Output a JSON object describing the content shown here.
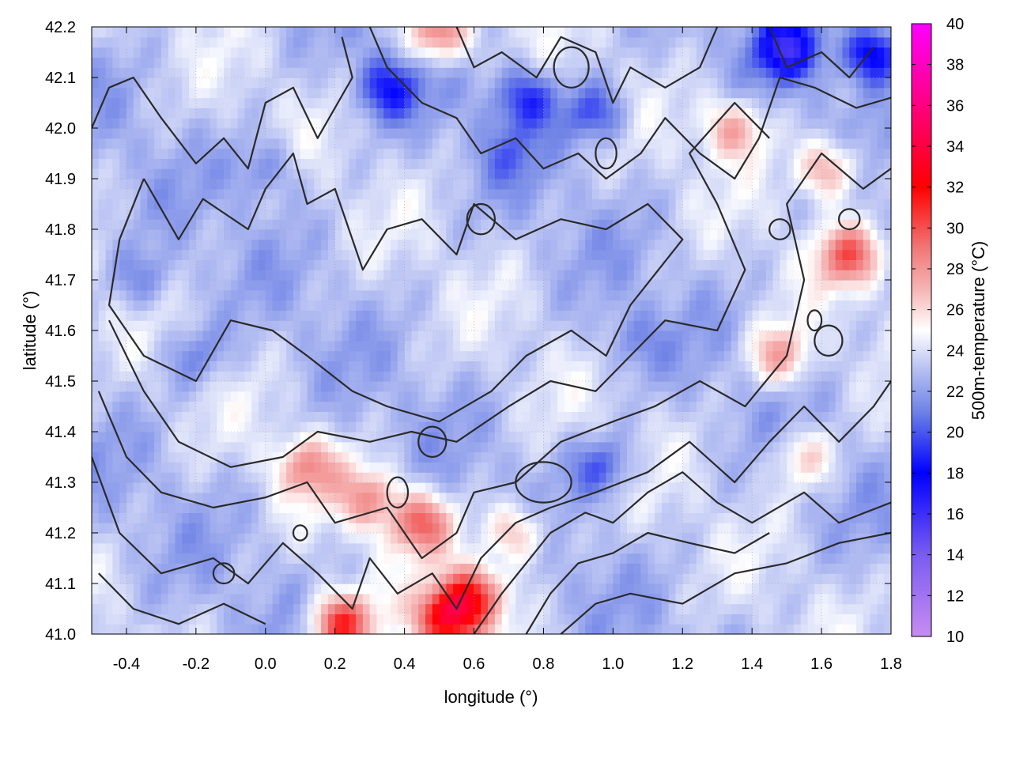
{
  "chart_data": {
    "type": "heatmap",
    "title": "",
    "xlabel": "longitude (°)",
    "ylabel": "latitude (°)",
    "colorbar_label": "500m-temperature (°C)",
    "xlim": [
      -0.5,
      1.8
    ],
    "ylim": [
      41.0,
      42.2
    ],
    "x_ticks": [
      -0.4,
      -0.2,
      0.0,
      0.2,
      0.4,
      0.6,
      0.8,
      1.0,
      1.2,
      1.4,
      1.6,
      1.8
    ],
    "x_tick_labels": [
      "-0.4",
      "-0.2",
      "0.0",
      "0.2",
      "0.4",
      "0.6",
      "0.8",
      "1.0",
      "1.2",
      "1.4",
      "1.6",
      "1.8"
    ],
    "y_ticks": [
      41.0,
      41.1,
      41.2,
      41.3,
      41.4,
      41.5,
      41.6,
      41.7,
      41.8,
      41.9,
      42.0,
      42.1,
      42.2
    ],
    "y_tick_labels": [
      "41.0",
      "41.1",
      "41.2",
      "41.3",
      "41.4",
      "41.5",
      "41.6",
      "41.7",
      "41.8",
      "41.9",
      "42.0",
      "42.1",
      "42.2"
    ],
    "colorbar_range": [
      10,
      40
    ],
    "colorbar_ticks": [
      10,
      12,
      14,
      16,
      18,
      20,
      22,
      24,
      26,
      28,
      30,
      32,
      34,
      36,
      38,
      40
    ],
    "colorbar_tick_labels": [
      "10",
      "12",
      "14",
      "16",
      "18",
      "20",
      "22",
      "24",
      "26",
      "28",
      "30",
      "32",
      "34",
      "36",
      "38",
      "40"
    ],
    "colormap": [
      {
        "value": 10,
        "color": "#c88cf0"
      },
      {
        "value": 14,
        "color": "#7a5cf0"
      },
      {
        "value": 18,
        "color": "#0000ff"
      },
      {
        "value": 21,
        "color": "#6e82e6"
      },
      {
        "value": 23,
        "color": "#b4bef2"
      },
      {
        "value": 25,
        "color": "#ffffff"
      },
      {
        "value": 27,
        "color": "#f6b4b4"
      },
      {
        "value": 29,
        "color": "#f07878"
      },
      {
        "value": 32,
        "color": "#ff0000"
      },
      {
        "value": 36,
        "color": "#ff0080"
      },
      {
        "value": 40,
        "color": "#ff00ff"
      }
    ],
    "grid": true,
    "hotspots": [
      {
        "lon": 0.22,
        "lat": 41.02,
        "t": 31
      },
      {
        "lon": 0.52,
        "lat": 41.03,
        "t": 32
      },
      {
        "lon": 0.6,
        "lat": 41.08,
        "t": 30
      },
      {
        "lon": 0.45,
        "lat": 41.22,
        "t": 29
      },
      {
        "lon": 0.3,
        "lat": 41.27,
        "t": 27.5
      },
      {
        "lon": 0.12,
        "lat": 41.33,
        "t": 27.5
      },
      {
        "lon": 0.72,
        "lat": 41.2,
        "t": 27.5
      },
      {
        "lon": 1.68,
        "lat": 41.75,
        "t": 29
      },
      {
        "lon": 1.62,
        "lat": 41.92,
        "t": 28
      },
      {
        "lon": 1.35,
        "lat": 42.0,
        "t": 27.5
      },
      {
        "lon": 1.48,
        "lat": 41.55,
        "t": 27.5
      },
      {
        "lon": 0.5,
        "lat": 42.19,
        "t": 29
      },
      {
        "lon": 1.55,
        "lat": 41.35,
        "t": 26.5
      }
    ],
    "coldspots": [
      {
        "lon": 1.5,
        "lat": 42.16,
        "t": 17
      },
      {
        "lon": 1.75,
        "lat": 42.15,
        "t": 17
      },
      {
        "lon": 0.35,
        "lat": 42.08,
        "t": 19
      },
      {
        "lon": 0.75,
        "lat": 42.06,
        "t": 19
      },
      {
        "lon": 0.95,
        "lat": 42.03,
        "t": 19.5
      },
      {
        "lon": -0.35,
        "lat": 41.7,
        "t": 21
      },
      {
        "lon": -0.2,
        "lat": 41.55,
        "t": 21
      },
      {
        "lon": 0.0,
        "lat": 41.92,
        "t": 21
      },
      {
        "lon": 0.97,
        "lat": 41.33,
        "t": 20
      },
      {
        "lon": 1.05,
        "lat": 41.58,
        "t": 21.5
      },
      {
        "lon": 0.7,
        "lat": 41.95,
        "t": 21.5
      }
    ],
    "contours": [
      [
        [
          -0.5,
          42.0
        ],
        [
          -0.45,
          42.08
        ],
        [
          -0.38,
          42.1
        ],
        [
          -0.3,
          42.02
        ],
        [
          -0.2,
          41.93
        ],
        [
          -0.12,
          41.98
        ],
        [
          -0.05,
          41.92
        ],
        [
          0.0,
          42.05
        ],
        [
          0.08,
          42.08
        ],
        [
          0.15,
          41.98
        ],
        [
          0.25,
          42.1
        ],
        [
          0.22,
          42.18
        ]
      ],
      [
        [
          -0.35,
          41.9
        ],
        [
          -0.25,
          41.78
        ],
        [
          -0.18,
          41.86
        ],
        [
          -0.05,
          41.8
        ],
        [
          0.0,
          41.88
        ],
        [
          0.08,
          41.95
        ],
        [
          0.12,
          41.85
        ],
        [
          0.2,
          41.88
        ],
        [
          0.28,
          41.72
        ],
        [
          0.35,
          41.8
        ],
        [
          0.45,
          41.82
        ],
        [
          0.55,
          41.75
        ],
        [
          0.6,
          41.85
        ],
        [
          0.72,
          41.78
        ],
        [
          0.85,
          41.82
        ],
        [
          0.98,
          41.8
        ],
        [
          1.1,
          41.85
        ],
        [
          1.2,
          41.78
        ],
        [
          1.05,
          41.65
        ],
        [
          0.98,
          41.55
        ],
        [
          0.88,
          41.6
        ],
        [
          0.75,
          41.55
        ],
        [
          0.65,
          41.48
        ],
        [
          0.5,
          41.42
        ],
        [
          0.35,
          41.45
        ],
        [
          0.25,
          41.48
        ],
        [
          0.12,
          41.55
        ],
        [
          0.02,
          41.6
        ],
        [
          -0.1,
          41.62
        ],
        [
          -0.2,
          41.5
        ],
        [
          -0.35,
          41.55
        ],
        [
          -0.45,
          41.65
        ],
        [
          -0.42,
          41.78
        ],
        [
          -0.35,
          41.9
        ]
      ],
      [
        [
          -0.45,
          41.62
        ],
        [
          -0.35,
          41.48
        ],
        [
          -0.25,
          41.38
        ],
        [
          -0.1,
          41.33
        ],
        [
          0.05,
          41.35
        ],
        [
          0.15,
          41.4
        ],
        [
          0.3,
          41.38
        ],
        [
          0.42,
          41.4
        ],
        [
          0.55,
          41.38
        ],
        [
          0.7,
          41.45
        ],
        [
          0.82,
          41.5
        ],
        [
          0.95,
          41.48
        ],
        [
          1.05,
          41.55
        ],
        [
          1.15,
          41.62
        ],
        [
          1.3,
          41.6
        ],
        [
          1.38,
          41.72
        ],
        [
          1.3,
          41.85
        ],
        [
          1.22,
          41.95
        ],
        [
          1.35,
          42.05
        ],
        [
          1.45,
          41.98
        ]
      ],
      [
        [
          -0.48,
          41.48
        ],
        [
          -0.4,
          41.35
        ],
        [
          -0.3,
          41.28
        ],
        [
          -0.15,
          41.25
        ],
        [
          0.0,
          41.27
        ],
        [
          0.12,
          41.3
        ],
        [
          0.2,
          41.22
        ],
        [
          0.35,
          41.25
        ],
        [
          0.45,
          41.15
        ],
        [
          0.55,
          41.2
        ],
        [
          0.6,
          41.28
        ],
        [
          0.72,
          41.3
        ],
        [
          0.85,
          41.38
        ],
        [
          1.0,
          41.42
        ],
        [
          1.12,
          41.45
        ],
        [
          1.25,
          41.5
        ],
        [
          1.38,
          41.45
        ],
        [
          1.5,
          41.55
        ],
        [
          1.55,
          41.7
        ],
        [
          1.5,
          41.85
        ],
        [
          1.6,
          41.95
        ],
        [
          1.72,
          41.88
        ],
        [
          1.8,
          41.92
        ]
      ],
      [
        [
          -0.5,
          41.35
        ],
        [
          -0.42,
          41.2
        ],
        [
          -0.3,
          41.12
        ],
        [
          -0.15,
          41.15
        ],
        [
          -0.05,
          41.1
        ],
        [
          0.05,
          41.18
        ],
        [
          0.15,
          41.12
        ],
        [
          0.25,
          41.05
        ],
        [
          0.3,
          41.15
        ],
        [
          0.38,
          41.08
        ],
        [
          0.48,
          41.12
        ],
        [
          0.55,
          41.05
        ],
        [
          0.62,
          41.15
        ],
        [
          0.72,
          41.22
        ],
        [
          0.82,
          41.25
        ],
        [
          0.95,
          41.28
        ],
        [
          1.1,
          41.32
        ],
        [
          1.22,
          41.38
        ],
        [
          1.35,
          41.3
        ],
        [
          1.45,
          41.38
        ],
        [
          1.55,
          41.45
        ],
        [
          1.65,
          41.38
        ],
        [
          1.75,
          41.45
        ],
        [
          1.8,
          41.5
        ]
      ],
      [
        [
          -0.48,
          41.12
        ],
        [
          -0.38,
          41.05
        ],
        [
          -0.25,
          41.02
        ],
        [
          -0.12,
          41.06
        ],
        [
          0.0,
          41.02
        ]
      ],
      [
        [
          0.6,
          41.0
        ],
        [
          0.68,
          41.08
        ],
        [
          0.75,
          41.14
        ],
        [
          0.82,
          41.2
        ],
        [
          0.92,
          41.24
        ],
        [
          1.0,
          41.22
        ],
        [
          1.1,
          41.28
        ],
        [
          1.2,
          41.32
        ],
        [
          1.3,
          41.26
        ],
        [
          1.4,
          41.22
        ],
        [
          1.55,
          41.28
        ],
        [
          1.65,
          41.22
        ],
        [
          1.8,
          41.26
        ]
      ],
      [
        [
          0.75,
          41.0
        ],
        [
          0.82,
          41.08
        ],
        [
          0.9,
          41.14
        ],
        [
          1.0,
          41.16
        ],
        [
          1.1,
          41.2
        ],
        [
          1.22,
          41.18
        ],
        [
          1.35,
          41.16
        ],
        [
          1.45,
          41.2
        ]
      ],
      [
        [
          0.85,
          41.0
        ],
        [
          0.95,
          41.06
        ],
        [
          1.05,
          41.08
        ],
        [
          1.2,
          41.06
        ],
        [
          1.35,
          41.12
        ],
        [
          1.5,
          41.14
        ],
        [
          1.65,
          41.18
        ],
        [
          1.8,
          41.2
        ]
      ],
      [
        [
          0.55,
          42.2
        ],
        [
          0.6,
          42.12
        ],
        [
          0.68,
          42.15
        ],
        [
          0.78,
          42.1
        ],
        [
          0.85,
          42.18
        ],
        [
          0.95,
          42.15
        ],
        [
          1.0,
          42.05
        ],
        [
          1.05,
          42.12
        ],
        [
          1.15,
          42.08
        ],
        [
          1.25,
          42.12
        ],
        [
          1.3,
          42.2
        ]
      ],
      [
        [
          0.3,
          42.2
        ],
        [
          0.35,
          42.12
        ],
        [
          0.45,
          42.05
        ],
        [
          0.55,
          42.02
        ],
        [
          0.62,
          41.95
        ],
        [
          0.72,
          41.98
        ],
        [
          0.8,
          41.92
        ],
        [
          0.9,
          41.95
        ],
        [
          0.98,
          41.9
        ],
        [
          1.08,
          41.95
        ],
        [
          1.15,
          42.02
        ],
        [
          1.25,
          41.95
        ],
        [
          1.35,
          41.9
        ],
        [
          1.42,
          41.98
        ],
        [
          1.48,
          42.1
        ],
        [
          1.58,
          42.08
        ],
        [
          1.7,
          42.04
        ],
        [
          1.8,
          42.06
        ]
      ],
      [
        [
          1.45,
          42.2
        ],
        [
          1.5,
          42.12
        ],
        [
          1.6,
          42.15
        ],
        [
          1.68,
          42.1
        ],
        [
          1.75,
          42.16
        ]
      ]
    ],
    "small_contours": [
      {
        "lon": 0.88,
        "lat": 42.12,
        "rx": 0.05,
        "ry": 0.04
      },
      {
        "lon": 0.98,
        "lat": 41.95,
        "rx": 0.03,
        "ry": 0.03
      },
      {
        "lon": 0.62,
        "lat": 41.82,
        "rx": 0.04,
        "ry": 0.03
      },
      {
        "lon": 0.48,
        "lat": 41.38,
        "rx": 0.04,
        "ry": 0.03
      },
      {
        "lon": 0.38,
        "lat": 41.28,
        "rx": 0.03,
        "ry": 0.03
      },
      {
        "lon": 0.8,
        "lat": 41.3,
        "rx": 0.08,
        "ry": 0.04
      },
      {
        "lon": 1.62,
        "lat": 41.58,
        "rx": 0.04,
        "ry": 0.03
      },
      {
        "lon": 1.48,
        "lat": 41.8,
        "rx": 0.03,
        "ry": 0.02
      },
      {
        "lon": -0.12,
        "lat": 41.12,
        "rx": 0.03,
        "ry": 0.02
      },
      {
        "lon": 0.1,
        "lat": 41.2,
        "rx": 0.02,
        "ry": 0.015
      },
      {
        "lon": 1.68,
        "lat": 41.82,
        "rx": 0.03,
        "ry": 0.02
      },
      {
        "lon": 1.58,
        "lat": 41.62,
        "rx": 0.02,
        "ry": 0.02
      }
    ]
  }
}
